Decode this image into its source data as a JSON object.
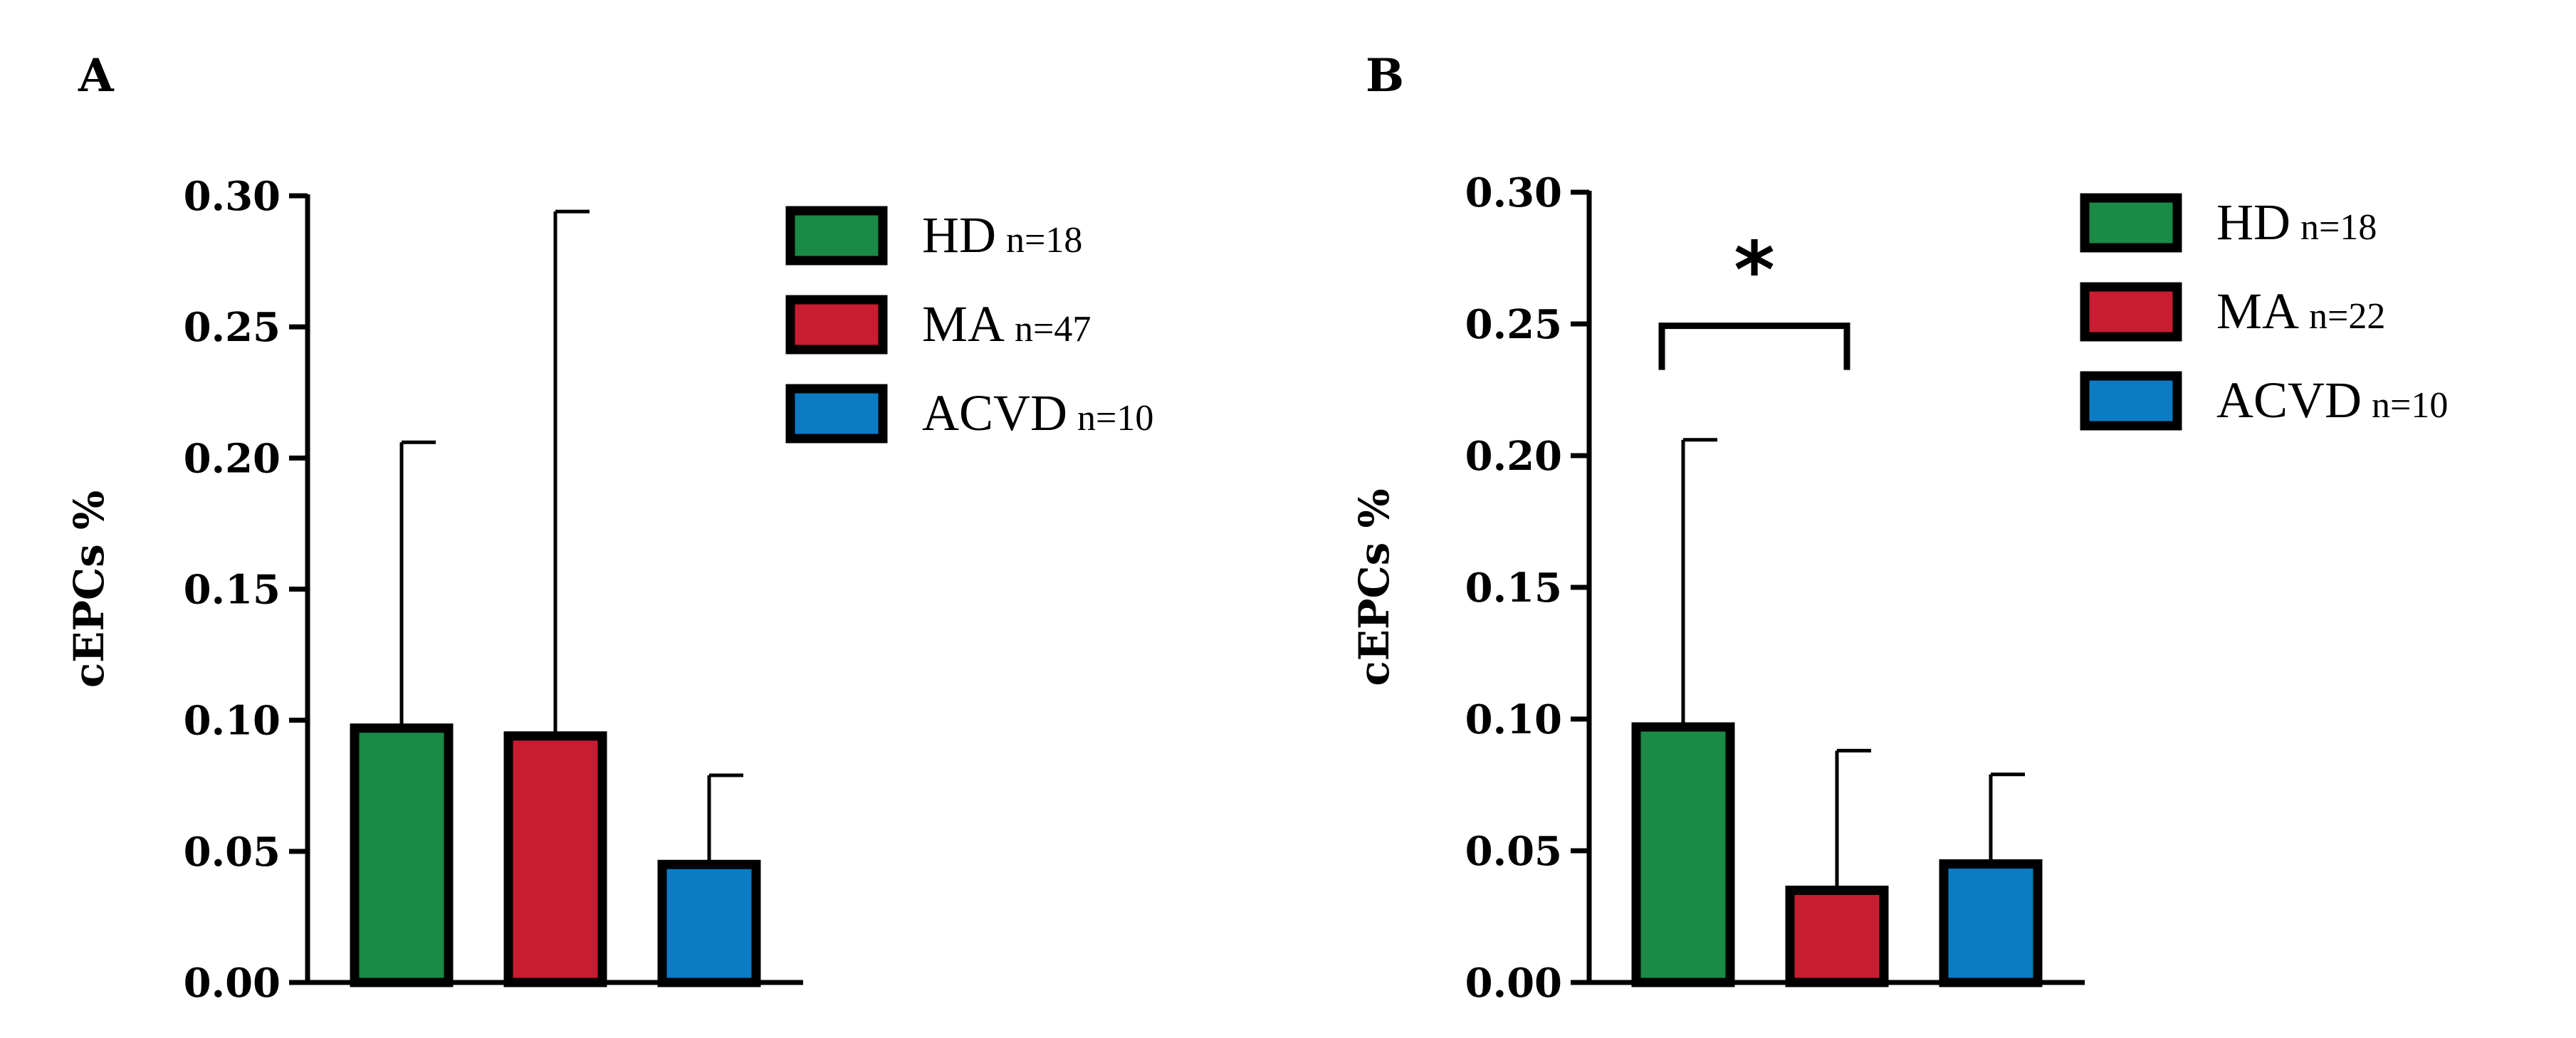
{
  "chart_data": [
    {
      "panel": "A",
      "type": "bar",
      "ylabel": "cEPCs %",
      "ylim": [
        0,
        0.3
      ],
      "yticks": [
        "0.00",
        "0.05",
        "0.10",
        "0.15",
        "0.20",
        "0.25",
        "0.30"
      ],
      "categories": [
        "HD",
        "MA",
        "ACVD"
      ],
      "values": [
        0.097,
        0.094,
        0.045
      ],
      "error_upper": [
        0.206,
        0.294,
        0.079
      ],
      "colors": [
        "#1a8a46",
        "#c81c30",
        "#0b7cc4"
      ],
      "legend": [
        {
          "label": "HD",
          "n": "n=18"
        },
        {
          "label": "MA",
          "n": "n=47"
        },
        {
          "label": "ACVD",
          "n": "n=10"
        }
      ],
      "significance": []
    },
    {
      "panel": "B",
      "type": "bar",
      "ylabel": "cEPCs %",
      "ylim": [
        0,
        0.3
      ],
      "yticks": [
        "0.00",
        "0.05",
        "0.10",
        "0.15",
        "0.20",
        "0.25",
        "0.30"
      ],
      "categories": [
        "HD",
        "MA",
        "ACVD"
      ],
      "values": [
        0.097,
        0.035,
        0.045
      ],
      "error_upper": [
        0.206,
        0.088,
        0.079
      ],
      "colors": [
        "#1a8a46",
        "#c81c30",
        "#0b7cc4"
      ],
      "legend": [
        {
          "label": "HD",
          "n": "n=18"
        },
        {
          "label": "MA",
          "n": "n=22"
        },
        {
          "label": "ACVD",
          "n": "n=10"
        }
      ],
      "significance": [
        {
          "from": 0,
          "to": 1,
          "label": "*",
          "y": 0.252
        }
      ]
    }
  ]
}
